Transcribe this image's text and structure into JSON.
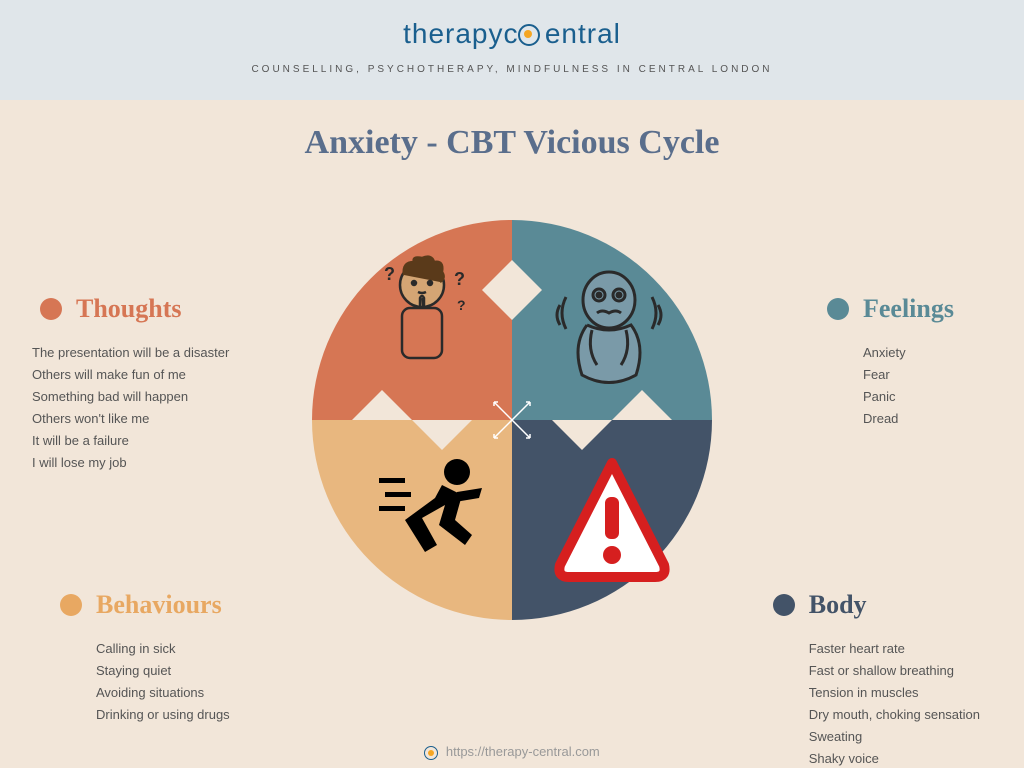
{
  "header": {
    "logo_part1": "therapyc",
    "logo_part2": "entral",
    "tagline": "COUNSELLING, PSYCHOTHERAPY, MINDFULNESS IN CENTRAL LONDON"
  },
  "title": "Anxiety - CBT Vicious Cycle",
  "quadrants": {
    "thoughts": {
      "label": "Thoughts",
      "color": "#d67654",
      "items": [
        "The presentation will be a disaster",
        "Others will make fun of me",
        "Something bad will happen",
        "Others won't like me",
        "It will be a failure",
        "I will lose my job"
      ]
    },
    "feelings": {
      "label": "Feelings",
      "color": "#5a8a96",
      "items": [
        "Anxiety",
        "Fear",
        "Panic",
        "Dread"
      ]
    },
    "behaviours": {
      "label": "Behaviours",
      "color": "#e8a862",
      "items": [
        "Calling in sick",
        "Staying quiet",
        "Avoiding situations",
        "Drinking or using drugs"
      ]
    },
    "body": {
      "label": "Body",
      "color": "#435368",
      "items": [
        "Faster heart rate",
        "Fast or shallow breathing",
        "Tension in muscles",
        "Dry mouth, choking sensation",
        "Sweating",
        "Shaky voice"
      ]
    }
  },
  "footer_url": "https://therapy-central.com",
  "colors": {
    "header_bg": "#e0e6ea",
    "main_bg": "#f2e6d9",
    "title_color": "#5a6e8c",
    "logo_color": "#1a5f8e",
    "accent": "#f5a623"
  }
}
